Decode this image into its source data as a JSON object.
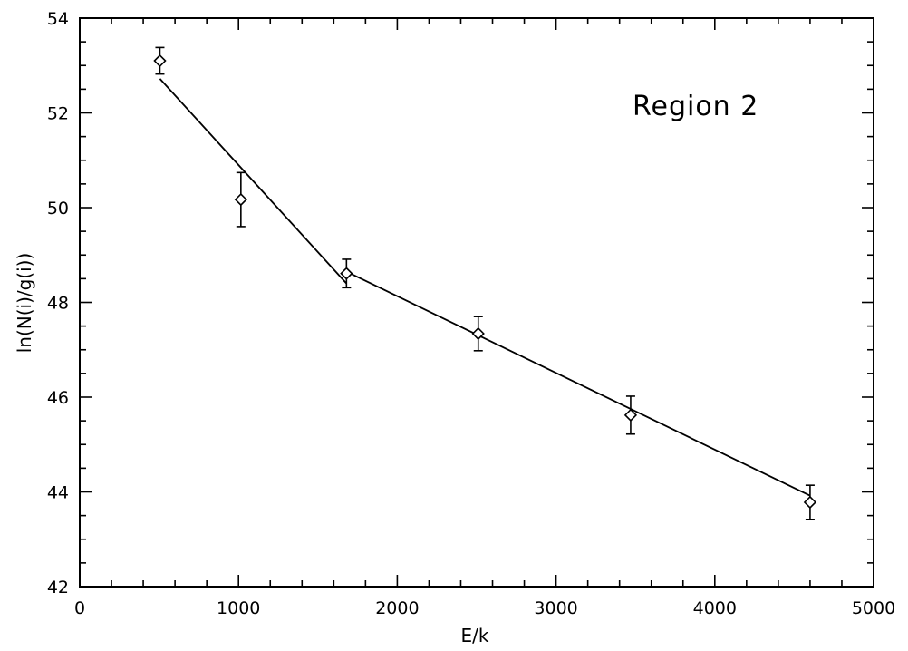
{
  "chart_data": {
    "type": "scatter",
    "title": "",
    "xlabel": "E/k",
    "ylabel": "ln(N(i)/g(i))",
    "xlim": [
      0,
      5000
    ],
    "ylim": [
      42,
      54
    ],
    "x_ticks": [
      0,
      1000,
      2000,
      3000,
      4000,
      5000
    ],
    "y_ticks": [
      42,
      44,
      46,
      48,
      50,
      52,
      54
    ],
    "x_minor_step": 200,
    "y_minor_step": 0.5,
    "grid": false,
    "annotation": "Region 2",
    "marker": "diamond",
    "points": [
      {
        "x": 505,
        "y": 53.1,
        "yerr": 0.28
      },
      {
        "x": 1015,
        "y": 50.17,
        "yerr": 0.57
      },
      {
        "x": 1680,
        "y": 48.61,
        "yerr": 0.3
      },
      {
        "x": 2510,
        "y": 47.34,
        "yerr": 0.36
      },
      {
        "x": 3470,
        "y": 45.62,
        "yerr": 0.4
      },
      {
        "x": 4600,
        "y": 43.78,
        "yerr": 0.36
      }
    ],
    "fit_lines": [
      {
        "x": [
          505,
          1680
        ],
        "y": [
          52.72,
          48.4
        ]
      },
      {
        "x": [
          1680,
          4600
        ],
        "y": [
          48.65,
          43.92
        ]
      }
    ]
  }
}
